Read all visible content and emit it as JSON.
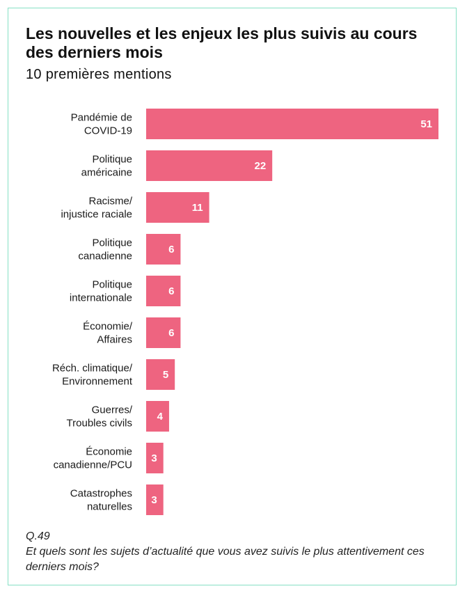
{
  "header": {
    "title": "Les nouvelles et les enjeux les plus suivis au cours des derniers mois",
    "subtitle": "10 premières mentions"
  },
  "footnote": {
    "question_id": "Q.49",
    "question_text": "Et quels sont les sujets d’actualité que vous avez suivis le plus attentivement ces derniers mois?"
  },
  "colors": {
    "bar": "#ee6480",
    "border": "#86e0c4"
  },
  "chart_data": {
    "type": "bar",
    "orientation": "horizontal",
    "title": "Les nouvelles et les enjeux les plus suivis au cours des derniers mois",
    "subtitle": "10 premières mentions",
    "categories": [
      [
        "Pandémie de",
        "COVID-19"
      ],
      [
        "Politique",
        "américaine"
      ],
      [
        "Racisme/",
        "injustice raciale"
      ],
      [
        "Politique",
        "canadienne"
      ],
      [
        "Politique",
        "internationale"
      ],
      [
        "Économie/",
        "Affaires"
      ],
      [
        "Réch. climatique/",
        "Environnement"
      ],
      [
        "Guerres/",
        "Troubles civils"
      ],
      [
        "Économie",
        "canadienne/PCU"
      ],
      [
        "Catastrophes",
        "naturelles"
      ]
    ],
    "values": [
      51,
      22,
      11,
      6,
      6,
      6,
      5,
      4,
      3,
      3
    ],
    "xlim": [
      0,
      51
    ],
    "grid": false,
    "legend": "none",
    "data_labels": "inside-end"
  }
}
